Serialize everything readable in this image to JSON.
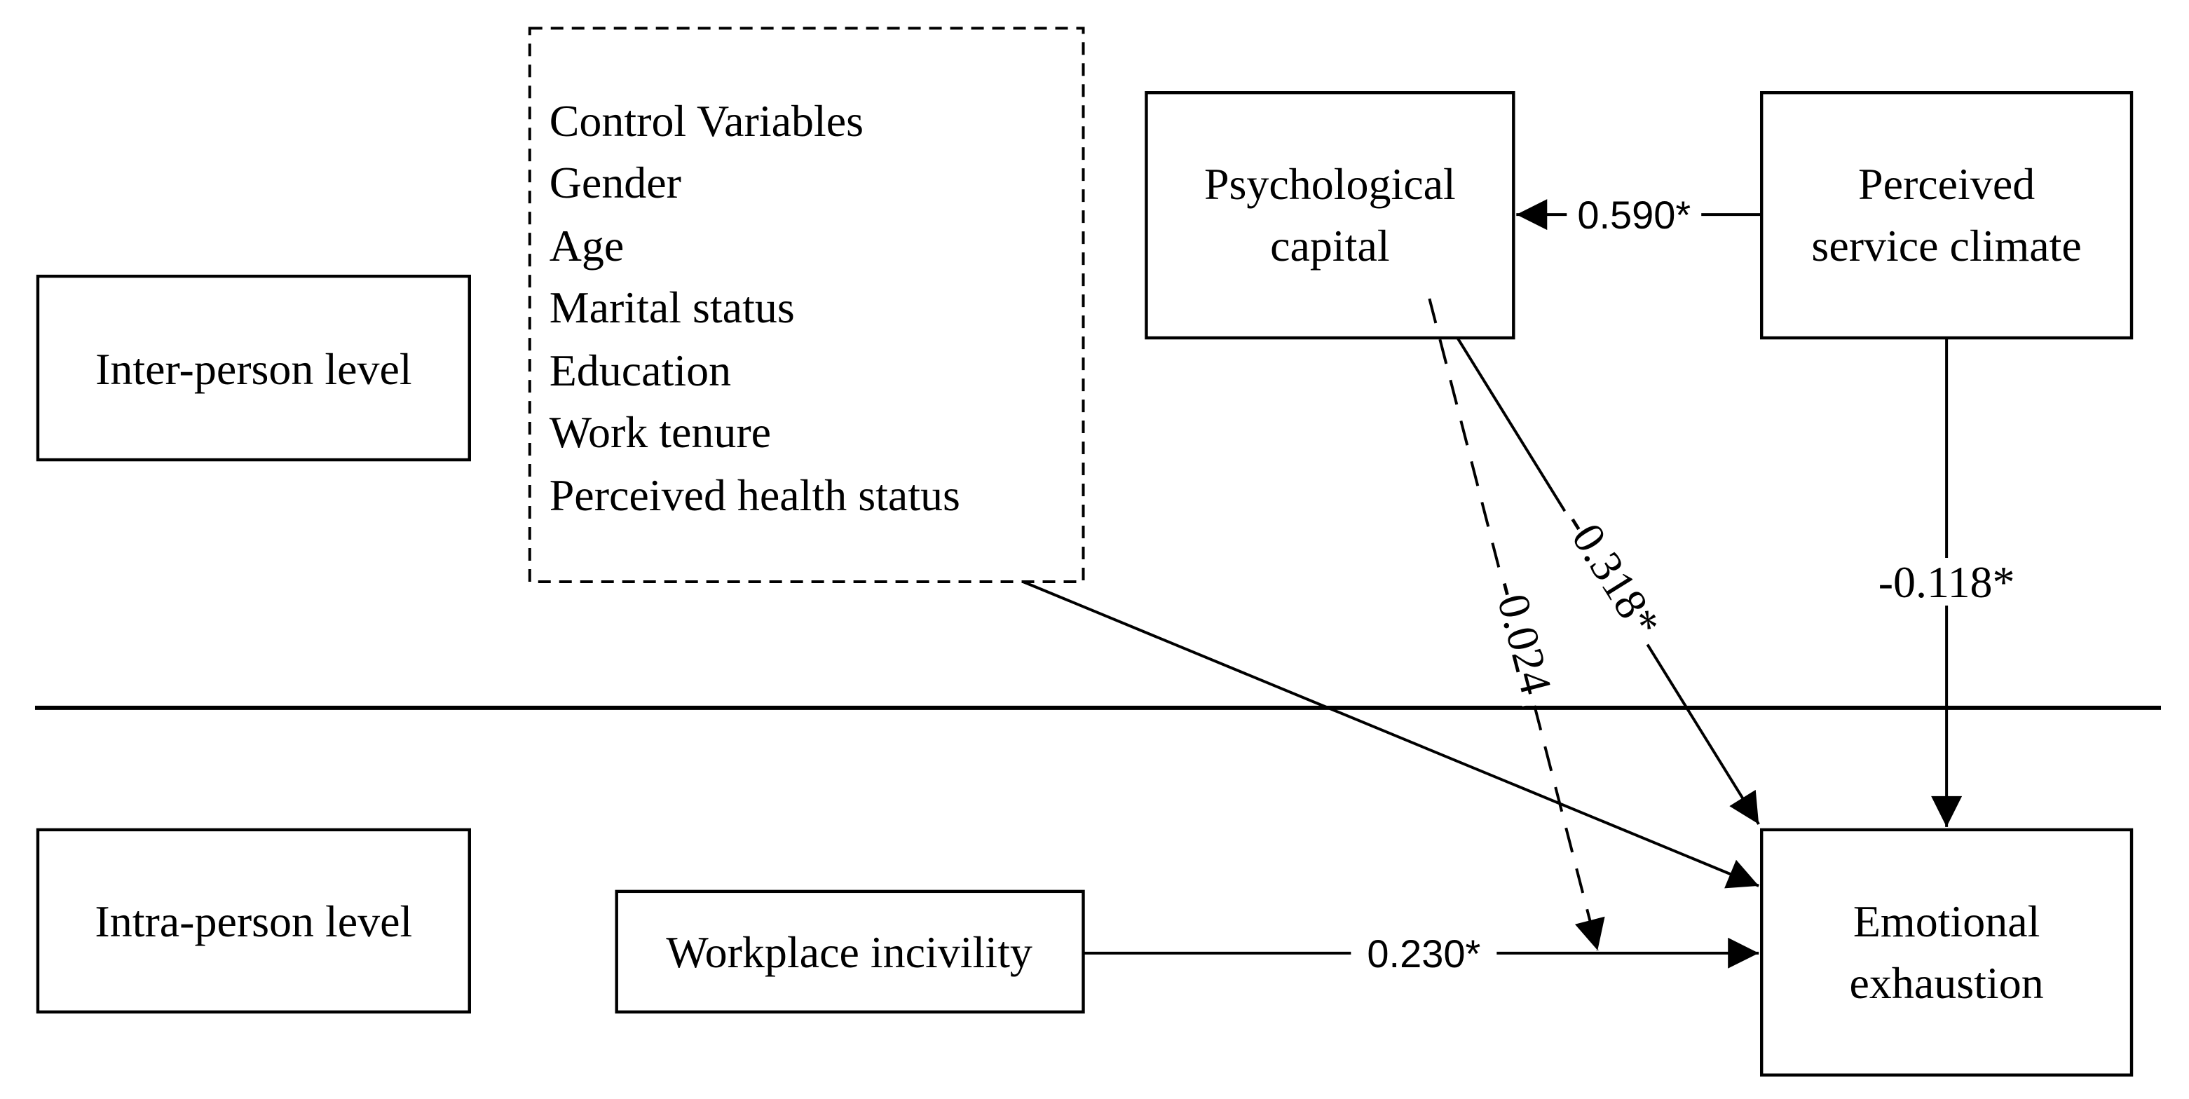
{
  "levels": {
    "inter": "Inter-person level",
    "intra": "Intra-person level"
  },
  "control_variables": {
    "title": "Control Variables",
    "items": [
      "Gender",
      "Age",
      "Marital status",
      "Education",
      "Work tenure",
      "Perceived health status"
    ]
  },
  "nodes": {
    "psychological_capital": [
      "Psychological",
      "capital"
    ],
    "perceived_service_climate": [
      "Perceived",
      "service climate"
    ],
    "emotional_exhaustion": [
      "Emotional",
      "exhaustion"
    ],
    "workplace_incivility": "Workplace incivility"
  },
  "paths": {
    "psc_to_pc": "0.590*",
    "psc_to_ee": "-0.118*",
    "pc_to_ee": "-0.318*",
    "pc_moderation": "-0.024",
    "wi_to_ee": "0.230*"
  }
}
